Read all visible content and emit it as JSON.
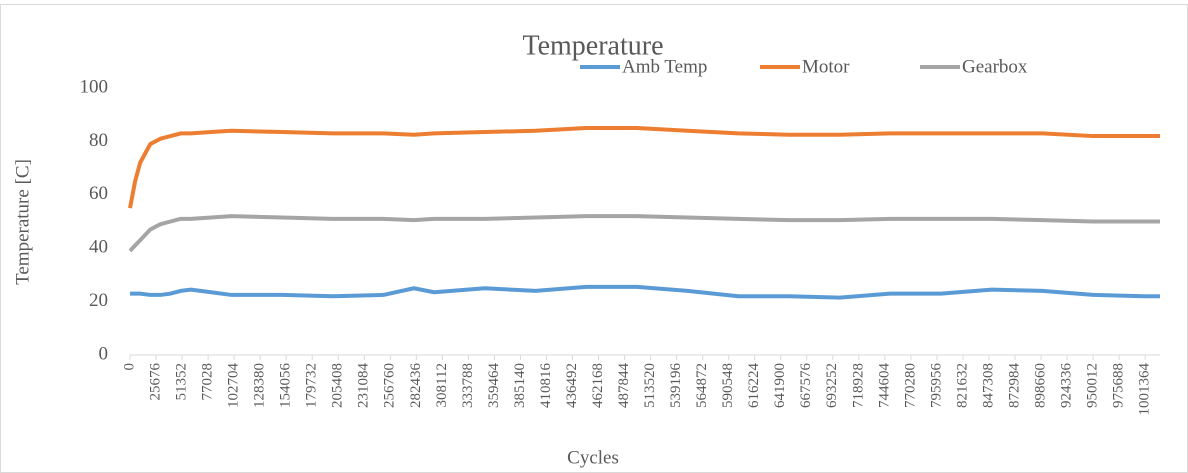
{
  "chart_data": {
    "type": "line",
    "title": "Temperature",
    "x_label": "Cycles",
    "y_label": "Temperature [C]",
    "x": [
      0,
      5000,
      10000,
      20000,
      30000,
      40000,
      50000,
      60000,
      80000,
      100000,
      150000,
      200000,
      250000,
      280000,
      300000,
      350000,
      400000,
      450000,
      500000,
      550000,
      600000,
      650000,
      700000,
      750000,
      800000,
      850000,
      900000,
      950000,
      1000000,
      1016000
    ],
    "series": [
      {
        "name": "Amb Temp",
        "color": "#5b9bd5",
        "values": [
          23,
          23,
          23,
          22.5,
          22.5,
          23,
          24,
          24.5,
          23.5,
          22.5,
          22.5,
          22,
          22.5,
          25,
          23.5,
          25,
          24,
          25.5,
          25.5,
          24,
          22,
          22,
          21.5,
          23,
          23,
          24.5,
          24,
          22.5,
          22,
          22
        ]
      },
      {
        "name": "Motor",
        "color": "#ed7d31",
        "values": [
          55,
          65,
          72,
          79,
          81,
          82,
          83,
          83,
          83.5,
          84,
          83.5,
          83,
          83,
          82.5,
          83,
          83.5,
          84,
          85,
          85,
          84,
          83,
          82.5,
          82.5,
          83,
          83,
          83,
          83,
          82,
          82,
          82
        ]
      },
      {
        "name": "Gearbox",
        "color": "#a5a5a5",
        "values": [
          39,
          41,
          43,
          47,
          49,
          50,
          51,
          51,
          51.5,
          52,
          51.5,
          51,
          51,
          50.5,
          51,
          51,
          51.5,
          52,
          52,
          51.5,
          51,
          50.5,
          50.5,
          51,
          51,
          51,
          50.5,
          50,
          50,
          50
        ]
      }
    ],
    "xlim": [
      0,
      1016000
    ],
    "xticks": [
      0,
      25676,
      51352,
      77028,
      102704,
      128380,
      154056,
      179732,
      205408,
      231084,
      256760,
      282436,
      308112,
      333788,
      359464,
      385140,
      410816,
      436492,
      462168,
      487844,
      513520,
      539196,
      564872,
      590548,
      616224,
      641900,
      667576,
      693252,
      718928,
      744604,
      770280,
      795956,
      821632,
      847308,
      872984,
      898660,
      924336,
      950012,
      975688,
      1001364
    ],
    "ylim": [
      0,
      100
    ],
    "yticks": [
      0,
      20,
      40,
      60,
      80,
      100
    ],
    "legend": "top-right"
  }
}
